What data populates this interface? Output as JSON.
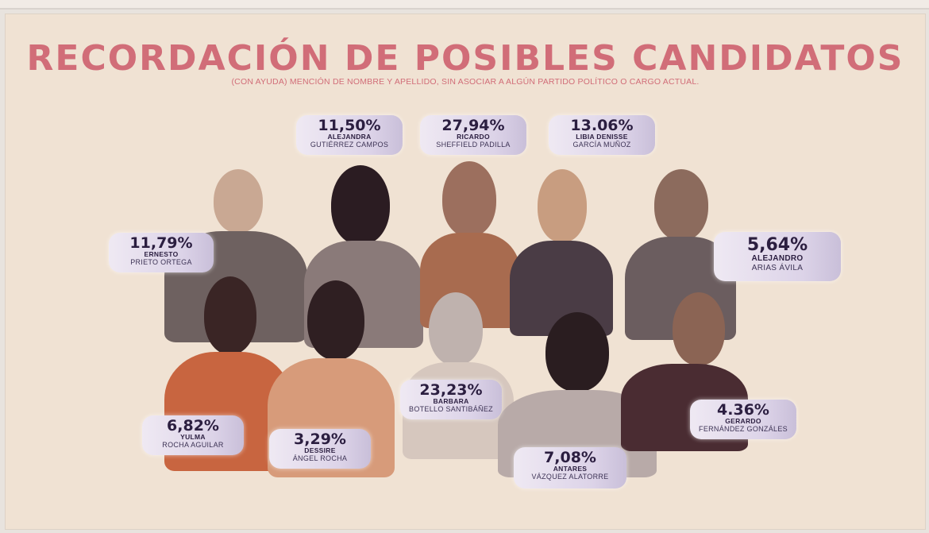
{
  "header": {
    "title": "RECORDACIÓN DE POSIBLES CANDIDATOS",
    "subtitle": "(CON AYUDA) MENCIÓN DE NOMBRE Y APELLIDO,  SIN ASOCIAR A ALGÚN PARTIDO POLÍTICO O CARGO ACTUAL."
  },
  "candidates": [
    {
      "percent": "11,50%",
      "first_name": "ALEJANDRA",
      "last_name": "GUTIÉRREZ CAMPOS"
    },
    {
      "percent": "27,94%",
      "first_name": "RICARDO",
      "last_name": "SHEFFIELD PADILLA"
    },
    {
      "percent": "13.06%",
      "first_name": "LIBIA DENISSE",
      "last_name": "GARCÍA MUÑOZ"
    },
    {
      "percent": "11,79%",
      "first_name": "ERNESTO",
      "last_name": "PRIETO ORTEGA"
    },
    {
      "percent": "5,64%",
      "first_name": "ALEJANDRO",
      "last_name": "ARIAS ÁVILA"
    },
    {
      "percent": "23,23%",
      "first_name": "BARBARA",
      "last_name": "BOTELLO SANTIBÁÑEZ"
    },
    {
      "percent": "6,82%",
      "first_name": "YULMA",
      "last_name": "ROCHA AGUILAR"
    },
    {
      "percent": "3,29%",
      "first_name": "DESSIRE",
      "last_name": "ÁNGEL ROCHA"
    },
    {
      "percent": "4.36%",
      "first_name": "GERARDO",
      "last_name": "FERNÁNDEZ GONZÁLES"
    },
    {
      "percent": "7,08%",
      "first_name": "ANTARES",
      "last_name": "VÁZQUEZ ALATORRE"
    }
  ],
  "colors": {
    "title": "#d16d78",
    "background": "#f0e2d3",
    "tag_text": "#2b1e40"
  }
}
